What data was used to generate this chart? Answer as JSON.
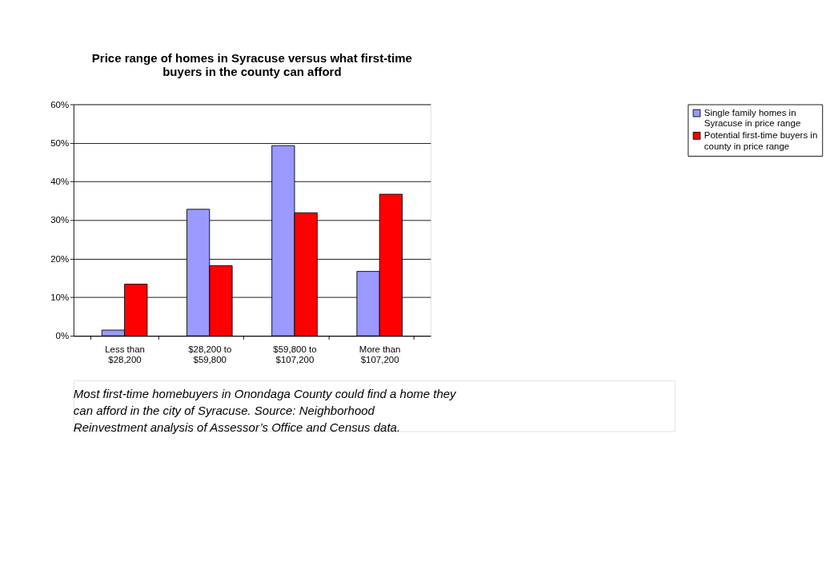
{
  "chart_data": {
    "type": "bar",
    "title": "Price range of homes in Syracuse versus what first-time buyers in the county can afford",
    "categories": [
      "Less than $28,200",
      "$28,200 to $59,800",
      "$59,800 to $107,200",
      "More than $107,200"
    ],
    "series": [
      {
        "name": "Single family homes in Syracuse in price range",
        "color": "#9999ff",
        "values": [
          1.5,
          32.8,
          49.3,
          16.7
        ]
      },
      {
        "name": "Potential first-time buyers in county in price range",
        "color": "#ff0000",
        "values": [
          13.4,
          18.2,
          31.9,
          36.7
        ]
      }
    ],
    "ylim": [
      0,
      60
    ],
    "yticks": [
      {
        "value": 0,
        "label": "0%"
      },
      {
        "value": 10,
        "label": "10%"
      },
      {
        "value": 20,
        "label": "20%"
      },
      {
        "value": 30,
        "label": "30%"
      },
      {
        "value": 40,
        "label": "40%"
      },
      {
        "value": 50,
        "label": "50%"
      },
      {
        "value": 60,
        "label": "60%"
      }
    ],
    "grid": "y",
    "legend": "right",
    "annotations": [
      "Most first-time homebuyers in Onondaga County could find a home they can afford in the city of Syracuse.  Source: Neighborhood Reinvestment analysis of Assessor’s Office and Census data."
    ]
  }
}
